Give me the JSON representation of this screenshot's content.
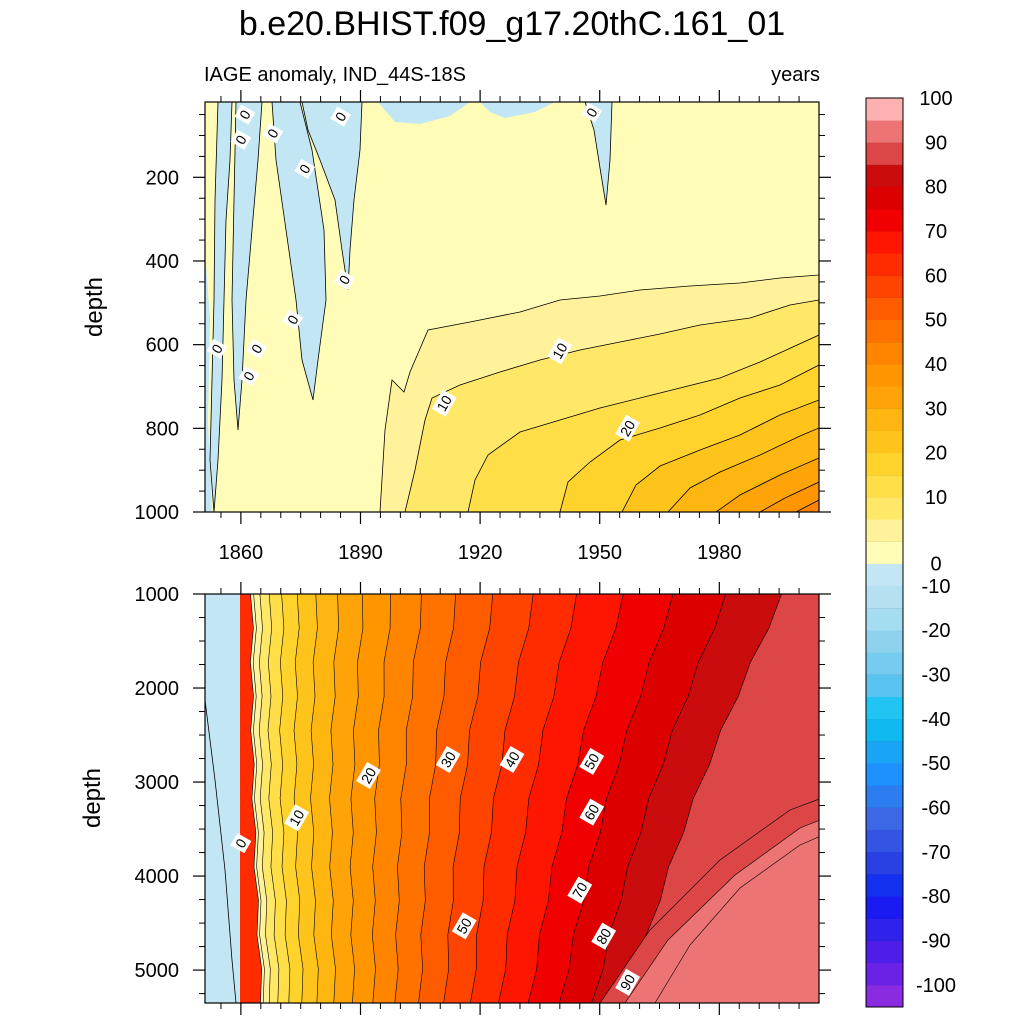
{
  "chart_data": {
    "type": "contour",
    "title": "b.e20.BHIST.f09_g17.20thC.161_01",
    "subtitle_left": "IAGE anomaly, IND_44S-18S",
    "subtitle_right": "years",
    "ylabel": "depth",
    "x_ticks": [
      "1860",
      "1890",
      "1920",
      "1950",
      "1980"
    ],
    "x_tick_values": [
      1860,
      1890,
      1920,
      1950,
      1980
    ],
    "xlim": [
      1851,
      2005
    ],
    "panels": [
      {
        "name": "upper",
        "ylim": [
          0,
          1000
        ],
        "ylim_plotted": [
          20,
          1000
        ],
        "y_ticks": [
          "200",
          "400",
          "600",
          "800",
          "1000"
        ],
        "y_tick_values": [
          200,
          400,
          600,
          800,
          1000
        ],
        "contour_labels": [
          {
            "text": "0",
            "x": 1861,
            "y": 50
          },
          {
            "text": "0",
            "x": 1885,
            "y": 55
          },
          {
            "text": "0",
            "x": 1948,
            "y": 45
          },
          {
            "text": "0",
            "x": 1860,
            "y": 110
          },
          {
            "text": "0",
            "x": 1868,
            "y": 95
          },
          {
            "text": "0",
            "x": 1876,
            "y": 180
          },
          {
            "text": "0",
            "x": 1886,
            "y": 445
          },
          {
            "text": "0",
            "x": 1873,
            "y": 540
          },
          {
            "text": "0",
            "x": 1854,
            "y": 610
          },
          {
            "text": "0",
            "x": 1864,
            "y": 610
          },
          {
            "text": "0",
            "x": 1862,
            "y": 675
          },
          {
            "text": "10",
            "x": 1940,
            "y": 615
          },
          {
            "text": "10",
            "x": 1911,
            "y": 740
          },
          {
            "text": "20",
            "x": 1957,
            "y": 800
          }
        ]
      },
      {
        "name": "lower",
        "ylim": [
          1000,
          5350
        ],
        "y_ticks": [
          "1000",
          "2000",
          "3000",
          "4000",
          "5000"
        ],
        "y_tick_values": [
          1000,
          2000,
          3000,
          4000,
          5000
        ],
        "contour_labels": [
          {
            "text": "0",
            "x": 1860,
            "y": 3650
          },
          {
            "text": "10",
            "x": 1874,
            "y": 3380
          },
          {
            "text": "20",
            "x": 1892,
            "y": 2930
          },
          {
            "text": "30",
            "x": 1912,
            "y": 2760
          },
          {
            "text": "40",
            "x": 1928,
            "y": 2760
          },
          {
            "text": "50",
            "x": 1948,
            "y": 2780
          },
          {
            "text": "60",
            "x": 1948,
            "y": 3320
          },
          {
            "text": "50",
            "x": 1916,
            "y": 4530
          },
          {
            "text": "70",
            "x": 1945,
            "y": 4150
          },
          {
            "text": "80",
            "x": 1951,
            "y": 4640
          },
          {
            "text": "90",
            "x": 1957,
            "y": 5130
          }
        ]
      }
    ],
    "colorbar": {
      "label_values": [
        "100",
        "90",
        "80",
        "70",
        "60",
        "50",
        "40",
        "30",
        "20",
        "10",
        "0",
        "-10",
        "-20",
        "-30",
        "-40",
        "-50",
        "-60",
        "-70",
        "-80",
        "-90",
        "-100"
      ],
      "levels": [
        -100,
        -95,
        -90,
        -85,
        -80,
        -75,
        -70,
        -65,
        -60,
        -55,
        -50,
        -45,
        -40,
        -35,
        -30,
        -25,
        -20,
        -15,
        -10,
        -5,
        0,
        5,
        10,
        15,
        20,
        25,
        30,
        35,
        40,
        45,
        50,
        55,
        60,
        65,
        70,
        75,
        80,
        85,
        90,
        95,
        100
      ],
      "colors": [
        "#8a2be2",
        "#6a22e6",
        "#4e1ee8",
        "#2f22ec",
        "#1a1af2",
        "#1430f0",
        "#2840e4",
        "#3454e4",
        "#3c68e6",
        "#2c7ef0",
        "#1e90ff",
        "#1aa4f6",
        "#0fb8f0",
        "#22c4f4",
        "#5ac4f0",
        "#76ccf0",
        "#8ed2ee",
        "#a4dcf0",
        "#b4e0f0",
        "#c2e6f4",
        "#fffcb8",
        "#fff29a",
        "#ffe868",
        "#ffde48",
        "#ffd22c",
        "#ffc41c",
        "#ffb610",
        "#ffa408",
        "#ff9600",
        "#ff8400",
        "#ff7200",
        "#ff5c00",
        "#ff4400",
        "#ff2c00",
        "#ff1600",
        "#f00000",
        "#dc0000",
        "#ca0c0c",
        "#dc4646",
        "#ec7474",
        "#ffb0b0"
      ]
    }
  }
}
